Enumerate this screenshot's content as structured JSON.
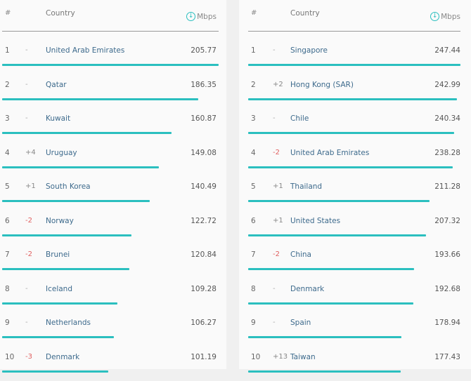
{
  "header": {
    "rank": "#",
    "country": "Country",
    "unit": "Mbps",
    "unit_icon": "download-arrow-icon"
  },
  "colors": {
    "bar": "#2bbfbf",
    "country_text": "#3d6a8c",
    "negative_change": "#e06060"
  },
  "left": {
    "max_value": 205.77,
    "rows": [
      {
        "rank": "1",
        "change": "-",
        "country": "United Arab Emirates",
        "value": "205.77"
      },
      {
        "rank": "2",
        "change": "-",
        "country": "Qatar",
        "value": "186.35"
      },
      {
        "rank": "3",
        "change": "-",
        "country": "Kuwait",
        "value": "160.87"
      },
      {
        "rank": "4",
        "change": "+4",
        "country": "Uruguay",
        "value": "149.08"
      },
      {
        "rank": "5",
        "change": "+1",
        "country": "South Korea",
        "value": "140.49"
      },
      {
        "rank": "6",
        "change": "-2",
        "country": "Norway",
        "value": "122.72"
      },
      {
        "rank": "7",
        "change": "-2",
        "country": "Brunei",
        "value": "120.84"
      },
      {
        "rank": "8",
        "change": "-",
        "country": "Iceland",
        "value": "109.28"
      },
      {
        "rank": "9",
        "change": "-",
        "country": "Netherlands",
        "value": "106.27"
      },
      {
        "rank": "10",
        "change": "-3",
        "country": "Denmark",
        "value": "101.19"
      }
    ]
  },
  "right": {
    "max_value": 247.44,
    "rows": [
      {
        "rank": "1",
        "change": "-",
        "country": "Singapore",
        "value": "247.44"
      },
      {
        "rank": "2",
        "change": "+2",
        "country": "Hong Kong (SAR)",
        "value": "242.99"
      },
      {
        "rank": "3",
        "change": "-",
        "country": "Chile",
        "value": "240.34"
      },
      {
        "rank": "4",
        "change": "-2",
        "country": "United Arab Emirates",
        "value": "238.28"
      },
      {
        "rank": "5",
        "change": "+1",
        "country": "Thailand",
        "value": "211.28"
      },
      {
        "rank": "6",
        "change": "+1",
        "country": "United States",
        "value": "207.32"
      },
      {
        "rank": "7",
        "change": "-2",
        "country": "China",
        "value": "193.66"
      },
      {
        "rank": "8",
        "change": "-",
        "country": "Denmark",
        "value": "192.68"
      },
      {
        "rank": "9",
        "change": "-",
        "country": "Spain",
        "value": "178.94"
      },
      {
        "rank": "10",
        "change": "+13",
        "country": "Taiwan",
        "value": "177.43"
      }
    ]
  }
}
